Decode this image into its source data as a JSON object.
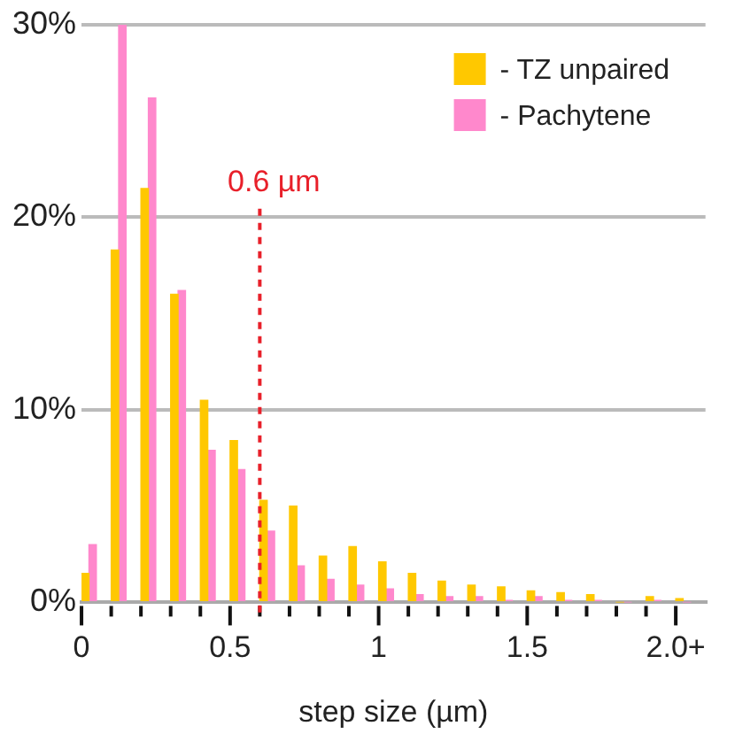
{
  "chart_data": {
    "type": "histogram",
    "xlabel": "step size (µm)",
    "bins": [
      0,
      0.1,
      0.2,
      0.3,
      0.4,
      0.5,
      0.6,
      0.7,
      0.8,
      0.9,
      1.0,
      1.1,
      1.2,
      1.3,
      1.4,
      1.5,
      1.6,
      1.7,
      1.8,
      1.9,
      2.0,
      2.1
    ],
    "series": [
      {
        "name": "- TZ unpaired",
        "color": "#ffc800",
        "values": [
          1.5,
          18.3,
          21.5,
          16.0,
          10.5,
          8.4,
          5.3,
          5.0,
          2.4,
          2.9,
          2.1,
          1.5,
          1.1,
          0.9,
          0.8,
          0.6,
          0.5,
          0.4,
          0,
          0.3,
          0.2
        ]
      },
      {
        "name": "- Pachytene",
        "color": "#ff88cc",
        "values": [
          3.0,
          30.0,
          26.2,
          16.2,
          7.9,
          6.9,
          3.7,
          1.9,
          1.2,
          0.9,
          0.7,
          0.4,
          0.3,
          0.3,
          0.1,
          0.3,
          0.1,
          0.1,
          0,
          0.1,
          0
        ]
      }
    ],
    "xlim": [
      0,
      2.1
    ],
    "xticks": [
      0,
      {
        "value": 0.1,
        "label": null
      },
      {
        "value": 0.2,
        "label": null
      },
      {
        "value": 0.3,
        "label": null
      },
      {
        "value": 0.4,
        "label": null
      },
      0.5,
      {
        "value": 0.6,
        "label": null
      },
      {
        "value": 0.7,
        "label": null
      },
      {
        "value": 0.8,
        "label": null
      },
      {
        "value": 0.9,
        "label": null
      },
      1,
      {
        "value": 1.1,
        "label": null
      },
      {
        "value": 1.2,
        "label": null
      },
      {
        "value": 1.3,
        "label": null
      },
      {
        "value": 1.4,
        "label": null
      },
      1.5,
      {
        "value": 1.6,
        "label": null
      },
      {
        "value": 1.7,
        "label": null
      },
      {
        "value": 1.8,
        "label": null
      },
      {
        "value": 1.9,
        "label": null
      },
      {
        "value": 2.0,
        "label": "2.0+"
      }
    ],
    "ylim": [
      0,
      30
    ],
    "yticks": [
      {
        "value": 0,
        "label": "0%"
      },
      {
        "value": 10,
        "label": "10%"
      },
      {
        "value": 20,
        "label": "20%"
      },
      {
        "value": 30,
        "label": "30%"
      }
    ],
    "ref_lines": [
      {
        "axis": "x",
        "value": 0.6,
        "label": "0.6 µm",
        "color": "#e8202a",
        "line_style": "dashed"
      }
    ],
    "grid": "y",
    "legend": "top right"
  }
}
